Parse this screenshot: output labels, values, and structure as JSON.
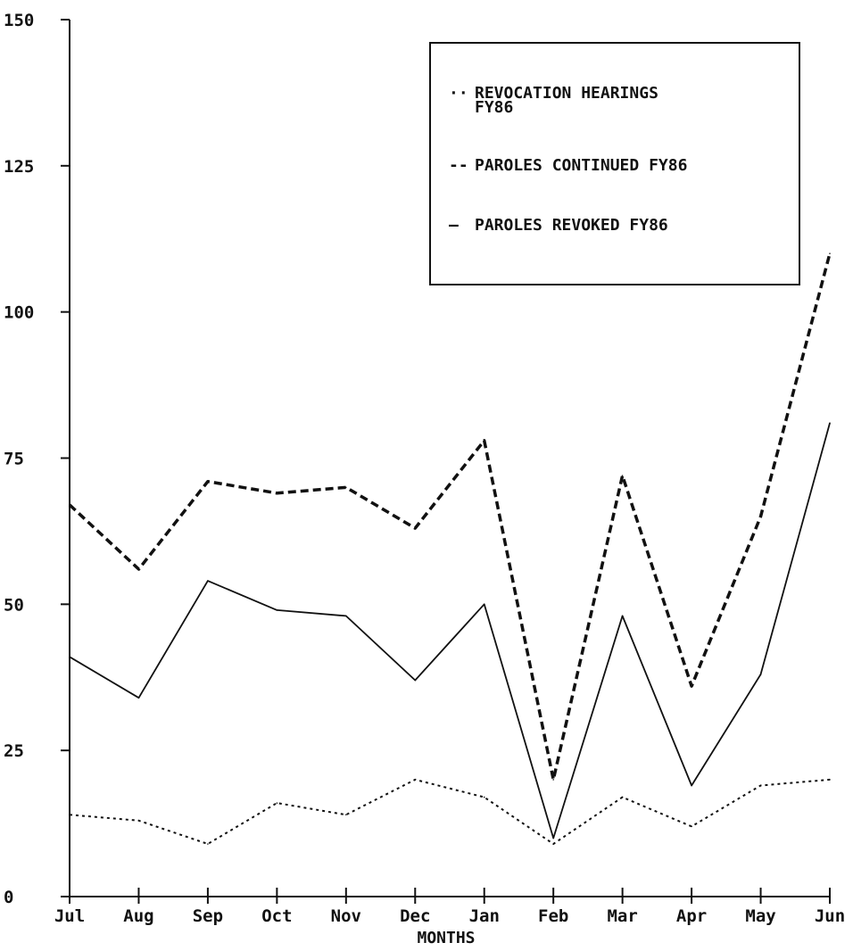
{
  "chart_data": {
    "type": "line",
    "title": "",
    "xlabel": "MONTHS",
    "ylabel": "",
    "categories": [
      "Jul",
      "Aug",
      "Sep",
      "Oct",
      "Nov",
      "Dec",
      "Jan",
      "Feb",
      "Mar",
      "Apr",
      "May",
      "Jun"
    ],
    "ylim": [
      0,
      150
    ],
    "yticks": [
      "0",
      "25",
      "50",
      "75",
      "100",
      "125",
      "150"
    ],
    "ytick_values": [
      0,
      25,
      50,
      75,
      100,
      125,
      150
    ],
    "grid": false,
    "legend_position": "top-right",
    "series": [
      {
        "name": "REVOCATION HEARINGS FY86",
        "legend_lines": [
          "REVOCATION HEARINGS",
          "FY86"
        ],
        "legend_marker": "··",
        "style": "dashed-heavy",
        "color": "#111111",
        "values": [
          67,
          56,
          71,
          69,
          70,
          63,
          78,
          20,
          72,
          36,
          65,
          110
        ]
      },
      {
        "name": "PAROLES CONTINUED FY86",
        "legend_lines": [
          "PAROLES CONTINUED FY86"
        ],
        "legend_marker": "--",
        "style": "dotted",
        "color": "#111111",
        "values": [
          14,
          13,
          9,
          16,
          14,
          20,
          17,
          9,
          17,
          12,
          19,
          20
        ]
      },
      {
        "name": "PAROLES REVOKED FY86",
        "legend_lines": [
          "PAROLES REVOKED FY86"
        ],
        "legend_marker": "—",
        "style": "solid",
        "color": "#111111",
        "values": [
          41,
          34,
          54,
          49,
          48,
          37,
          50,
          10,
          48,
          19,
          38,
          81
        ]
      }
    ]
  }
}
